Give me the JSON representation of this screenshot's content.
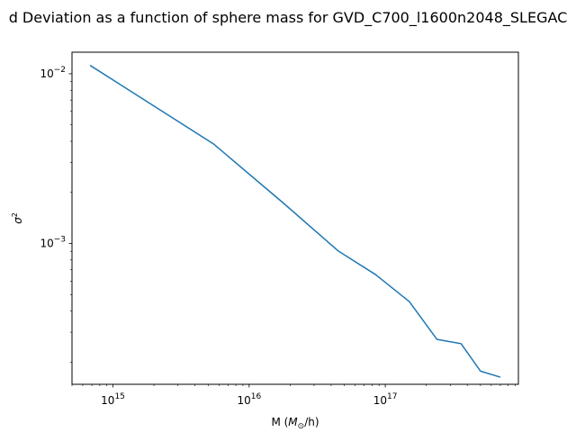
{
  "chart_data": {
    "type": "line",
    "title": "d Deviation as a function of sphere mass for GVD_C700_l1600n2048_SLEGAC",
    "xlabel_prefix": "M (",
    "xlabel_symbol": "M",
    "xlabel_subscript": "⊙",
    "xlabel_suffix": "/h)",
    "ylabel_base": "σ",
    "ylabel_exponent": "2",
    "xscale": "log",
    "yscale": "log",
    "xlim": [
      500000000000000.0,
      9.5e+17
    ],
    "ylim": [
      0.000148,
      0.0134
    ],
    "grid": false,
    "x_ticks": [
      {
        "value": 1000000000000000.0,
        "base": "10",
        "exp": "15"
      },
      {
        "value": 1e+16,
        "base": "10",
        "exp": "16"
      },
      {
        "value": 1e+17,
        "base": "10",
        "exp": "17"
      }
    ],
    "y_ticks": [
      {
        "value": 0.01,
        "base": "10",
        "exp": "−2"
      },
      {
        "value": 0.001,
        "base": "10",
        "exp": "−3"
      }
    ],
    "series": [
      {
        "color": "#1f77b4",
        "x": [
          680000000000000.0,
          5500000000000000.0,
          1.8e+16,
          4.5e+16,
          8.5e+16,
          1.5e+17,
          2.4e+17,
          3.6e+17,
          5e+17,
          7e+17
        ],
        "y": [
          0.0112,
          0.00385,
          0.00172,
          0.000905,
          0.000655,
          0.000455,
          0.000272,
          0.000257,
          0.000177,
          0.000163
        ]
      }
    ]
  }
}
